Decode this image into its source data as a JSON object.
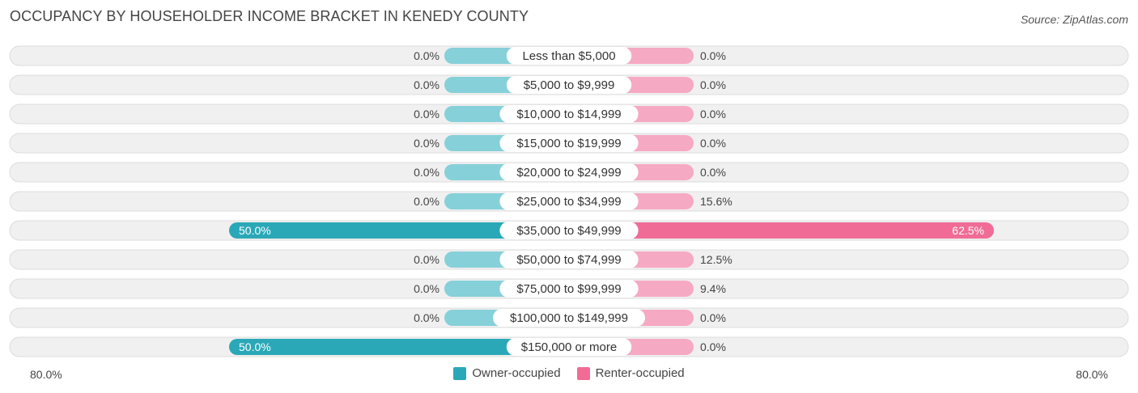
{
  "title": "OCCUPANCY BY HOUSEHOLDER INCOME BRACKET IN KENEDY COUNTY",
  "source": "Source: ZipAtlas.com",
  "colors": {
    "owner_strong": "#2aa8b8",
    "owner_light": "#86d0d9",
    "renter_strong": "#f06c96",
    "renter_light": "#f6a9c2",
    "track": "#f0f0f0",
    "track_border": "#dcdcdc"
  },
  "chart_data": {
    "type": "bar",
    "orientation": "horizontal-diverging",
    "title": "OCCUPANCY BY HOUSEHOLDER INCOME BRACKET IN KENEDY COUNTY",
    "categories": [
      "Less than $5,000",
      "$5,000 to $9,999",
      "$10,000 to $14,999",
      "$15,000 to $19,999",
      "$20,000 to $24,999",
      "$25,000 to $34,999",
      "$35,000 to $49,999",
      "$50,000 to $74,999",
      "$75,000 to $99,999",
      "$100,000 to $149,999",
      "$150,000 or more"
    ],
    "series": [
      {
        "name": "Owner-occupied",
        "values": [
          0.0,
          0.0,
          0.0,
          0.0,
          0.0,
          0.0,
          50.0,
          0.0,
          0.0,
          0.0,
          50.0
        ],
        "labels": [
          "0.0%",
          "0.0%",
          "0.0%",
          "0.0%",
          "0.0%",
          "0.0%",
          "50.0%",
          "0.0%",
          "0.0%",
          "0.0%",
          "50.0%"
        ]
      },
      {
        "name": "Renter-occupied",
        "values": [
          0.0,
          0.0,
          0.0,
          0.0,
          0.0,
          15.6,
          62.5,
          12.5,
          9.4,
          0.0,
          0.0
        ],
        "labels": [
          "0.0%",
          "0.0%",
          "0.0%",
          "0.0%",
          "0.0%",
          "15.6%",
          "62.5%",
          "12.5%",
          "9.4%",
          "0.0%",
          "0.0%"
        ]
      }
    ],
    "xlim": [
      -80,
      80
    ],
    "axis_min_label": "80.0%",
    "axis_max_label": "80.0%",
    "legend_position": "bottom-center"
  },
  "legend": {
    "owner_label": "Owner-occupied",
    "renter_label": "Renter-occupied"
  }
}
